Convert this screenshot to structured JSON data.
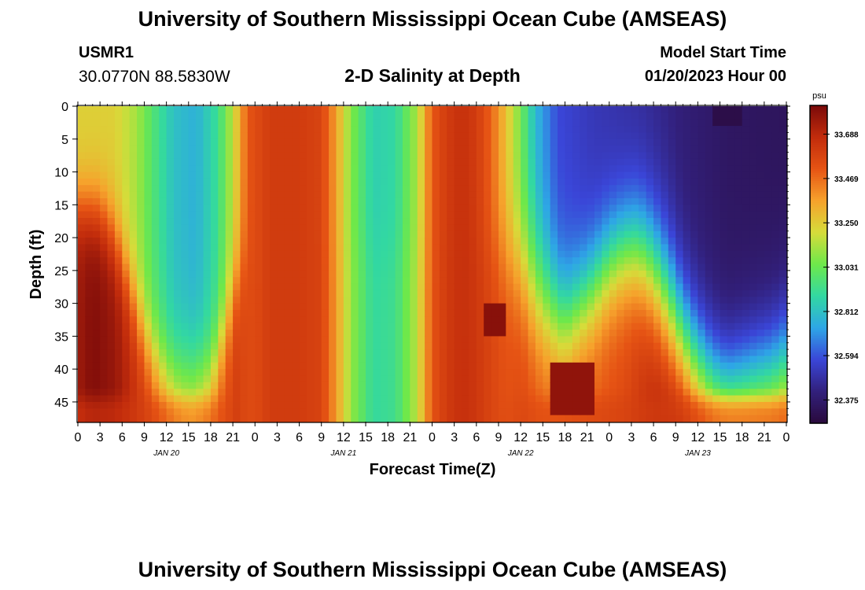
{
  "header": {
    "title": "University of Southern Mississippi Ocean Cube (AMSEAS)",
    "station_id": "USMR1",
    "coordinates": "30.0770N  88.5830W",
    "model_start_label": "Model Start Time",
    "model_start_value": "01/20/2023 Hour 00"
  },
  "footer": {
    "title": "University of Southern Mississippi Ocean Cube (AMSEAS)"
  },
  "colors": {
    "background": "#ffffff",
    "colormap": [
      "#2a0a3c",
      "#32207c",
      "#3a46d8",
      "#2ea6e6",
      "#32d8a2",
      "#6ee84a",
      "#d6dc3a",
      "#f6a22c",
      "#e65414",
      "#c22c0c",
      "#7a0a0a"
    ]
  },
  "chart_data": {
    "type": "heatmap",
    "title": "2-D Salinity at Depth",
    "xlabel": "Forecast Time(Z)",
    "ylabel": "Depth (ft)",
    "x_tick_labels": [
      "0",
      "3",
      "6",
      "9",
      "12",
      "15",
      "18",
      "21",
      "0",
      "3",
      "6",
      "9",
      "12",
      "15",
      "18",
      "21",
      "0",
      "3",
      "6",
      "9",
      "12",
      "15",
      "18",
      "21",
      "0",
      "3",
      "6",
      "9",
      "12",
      "15",
      "18",
      "21",
      "0"
    ],
    "day_labels": [
      "JAN 20",
      "JAN 21",
      "JAN 22",
      "JAN 23"
    ],
    "y_tick_labels": [
      "0",
      "5",
      "10",
      "15",
      "20",
      "25",
      "30",
      "35",
      "40",
      "45"
    ],
    "y_ticks": [
      0,
      5,
      10,
      15,
      20,
      25,
      30,
      35,
      40,
      45
    ],
    "ylim": [
      0,
      48
    ],
    "xlim_hours": [
      0,
      96
    ],
    "colorbar": {
      "unit": "psu",
      "labels": [
        "33.688",
        "33.469",
        "33.250",
        "33.031",
        "32.812",
        "32.594",
        "32.375"
      ],
      "values": [
        33.688,
        33.469,
        33.25,
        33.031,
        32.812,
        32.594,
        32.375
      ],
      "range": [
        32.26,
        33.83
      ]
    }
  }
}
